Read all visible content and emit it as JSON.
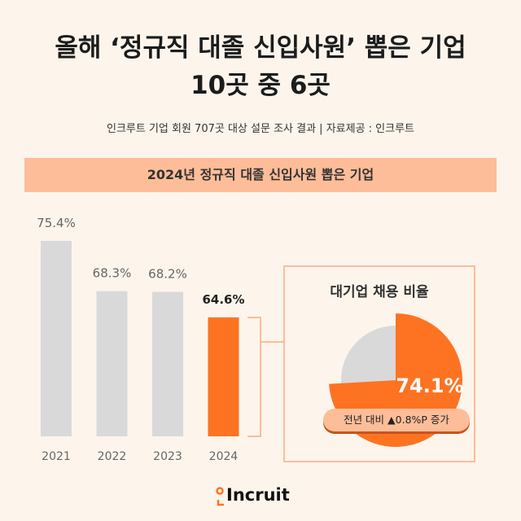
{
  "header": {
    "title_line1": "올해 ‘정규직 대졸 신입사원’ 뽑은 기업",
    "title_line2": "10곳 중 6곳",
    "subtitle": "인크루트 기업 회원 707곳 대상 설문 조사 결과 | 자료제공 : 인크루트"
  },
  "chart_data": [
    {
      "type": "bar",
      "title": "2024년 정규직 대졸 신입사원 뽑은 기업",
      "categories": [
        "2021",
        "2022",
        "2023",
        "2024"
      ],
      "values": [
        75.4,
        68.3,
        68.2,
        64.6
      ],
      "data_labels": [
        "75.4%",
        "68.3%",
        "68.2%",
        "64.6%"
      ],
      "colors": [
        "#d9d9d9",
        "#d9d9d9",
        "#d9d9d9",
        "#fd7322"
      ],
      "grid": false
    },
    {
      "type": "pie",
      "title": "대기업 채용 비율",
      "values": [
        74.1,
        25.9
      ],
      "data_label": "74.1%",
      "annotation": "전년 대비 ▲0.8%P 증가",
      "colors": [
        "#fd7322",
        "#d9d9d9"
      ]
    }
  ],
  "brand": {
    "name": "Incruit",
    "accent": "#fd7322"
  }
}
